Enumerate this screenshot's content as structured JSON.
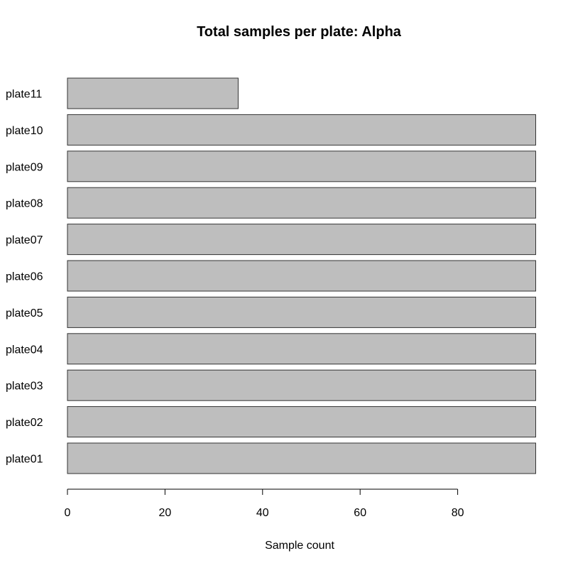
{
  "chart_data": {
    "type": "bar",
    "orientation": "horizontal",
    "title": "Total samples per plate:  Alpha",
    "xlabel": "Sample count",
    "ylabel": "",
    "categories": [
      "plate01",
      "plate02",
      "plate03",
      "plate04",
      "plate05",
      "plate06",
      "plate07",
      "plate08",
      "plate09",
      "plate10",
      "plate11"
    ],
    "values": [
      96,
      96,
      96,
      96,
      96,
      96,
      96,
      96,
      96,
      96,
      35
    ],
    "x_ticks": [
      0,
      20,
      40,
      60,
      80
    ],
    "xlim": [
      0,
      96
    ],
    "grid": false,
    "colors": {
      "bar_fill": "#bebebe",
      "bar_stroke": "#333333",
      "axis": "#000000"
    }
  }
}
